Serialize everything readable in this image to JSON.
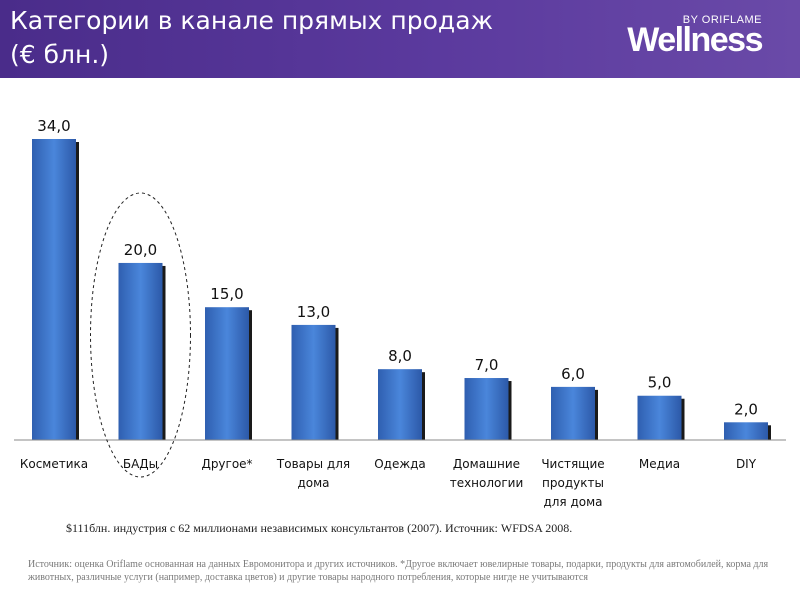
{
  "header": {
    "title": "Категории в канале прямых продаж\n(€ блн.)",
    "brand_by": "BY ORIFLAME",
    "brand_name": "Wellness"
  },
  "chart_data": {
    "type": "bar",
    "title": "Категории в канале прямых продаж (€ блн.)",
    "categories": [
      "Косметика",
      "БАДы",
      "Другое*",
      "Товары для дома",
      "Одежда",
      "Домашние технологии",
      "Чистящие продукты для дома",
      "Медиа",
      "DIY"
    ],
    "category_lines": [
      [
        "Косметика"
      ],
      [
        "БАДы"
      ],
      [
        "Другое*"
      ],
      [
        "Товары для",
        "дома"
      ],
      [
        "Одежда"
      ],
      [
        "Домашние",
        "технологии"
      ],
      [
        "Чистящие",
        "продукты",
        "для дома"
      ],
      [
        "Медиа"
      ],
      [
        "DIY"
      ]
    ],
    "values": [
      34.0,
      20.0,
      15.0,
      13.0,
      8.0,
      7.0,
      6.0,
      5.0,
      2.0
    ],
    "value_labels": [
      "34,0",
      "20,0",
      "15,0",
      "13,0",
      "8,0",
      "7,0",
      "6,0",
      "5,0",
      "2,0"
    ],
    "ylim": [
      0,
      34
    ],
    "grid": false,
    "highlighted_category": "БАДы",
    "bar_color": "#3a6fc4"
  },
  "footnote": "$111блн. индустрия с 62 миллионами независимых консультантов (2007). Источник: WFDSA 2008.",
  "source": "Источник: оценка Oriflame основанная на данных Евромонитора и других источников. *Другое включает ювелирные товары, подарки, продукты для автомобилей, корма для животных, различные услуги (например, доставка цветов) и другие товары народного потребления, которые нигде не учитываются"
}
